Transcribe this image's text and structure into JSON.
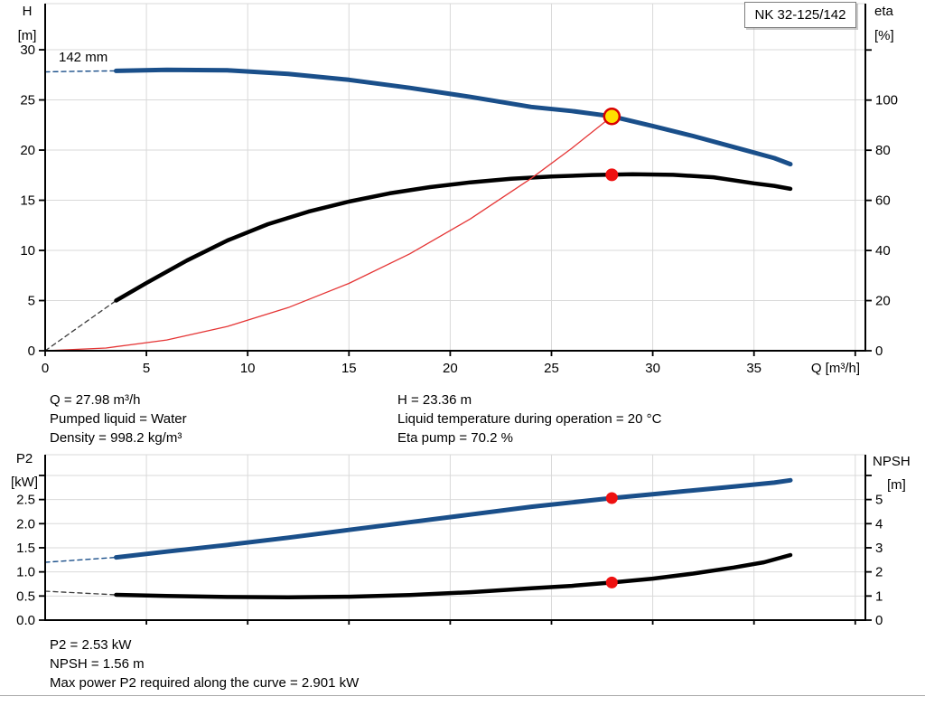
{
  "header": {
    "model": "NK 32-125/142"
  },
  "operating_point": {
    "left": [
      "Q = 27.98 m³/h",
      "Pumped liquid = Water",
      "Density = 998.2 kg/m³"
    ],
    "right": [
      "H = 23.36 m",
      "Liquid temperature during operation = 20 °C",
      "Eta pump = 70.2 %"
    ]
  },
  "results": [
    "P2 = 2.53 kW",
    "NPSH = 1.56 m",
    "Max power P2 required along the curve = 2.901 kW"
  ],
  "colors": {
    "curve_blue": "#1a4f8a",
    "curve_black": "#000000",
    "system_red": "#e53535",
    "dot_red": "#ee1111",
    "dot_yellow": "#ffe000",
    "grid": "#d9d9d9"
  },
  "chart_data": [
    {
      "id": "hq",
      "type": "line",
      "title": "",
      "impeller_label": "142 mm",
      "x_axis": {
        "label": "Q [m³/h]",
        "min": 0,
        "max": 40.5,
        "labeled_ticks": [
          0,
          5,
          10,
          15,
          20,
          25,
          30,
          35
        ],
        "tick_marks": [
          0,
          5,
          10,
          15,
          20,
          25,
          30,
          35,
          40
        ],
        "grid_ticks": [
          5,
          10,
          15,
          20,
          25,
          30,
          35,
          40
        ]
      },
      "y_left": {
        "label_lines": [
          "H",
          "[m]"
        ],
        "min": 0,
        "max": 34.6,
        "ticks": [
          0,
          5,
          10,
          15,
          20,
          25,
          30
        ],
        "unlabeled_ticks": [],
        "decimals": 0
      },
      "y_right": {
        "label_lines": [
          "eta",
          "[%]"
        ],
        "min": 0,
        "max": 138.5,
        "ticks": [
          0,
          20,
          40,
          60,
          80,
          100
        ],
        "unlabeled_ticks": [
          120
        ],
        "decimals": 0
      },
      "series": [
        {
          "name": "head-dashed",
          "axis": "left",
          "color": "#1a4f8a",
          "width": 1.4,
          "dash": "5 4",
          "points": [
            [
              0,
              27.8
            ],
            [
              1.8,
              27.86
            ],
            [
              3.5,
              27.9
            ]
          ]
        },
        {
          "name": "head",
          "axis": "left",
          "color": "#1a4f8a",
          "width": 5,
          "points": [
            [
              3.5,
              27.9
            ],
            [
              6,
              28.0
            ],
            [
              9,
              27.95
            ],
            [
              12,
              27.6
            ],
            [
              15,
              27.0
            ],
            [
              18,
              26.2
            ],
            [
              21,
              25.3
            ],
            [
              24,
              24.3
            ],
            [
              26,
              23.9
            ],
            [
              27.98,
              23.36
            ],
            [
              30,
              22.4
            ],
            [
              32,
              21.4
            ],
            [
              34,
              20.3
            ],
            [
              36,
              19.2
            ],
            [
              36.8,
              18.6
            ]
          ]
        },
        {
          "name": "eta-dashed",
          "axis": "right",
          "color": "#3c3c3c",
          "width": 1.3,
          "dash": "5 4",
          "points": [
            [
              0,
              0
            ],
            [
              3.5,
              20
            ]
          ]
        },
        {
          "name": "eta",
          "axis": "right",
          "color": "#000000",
          "width": 4.5,
          "points": [
            [
              3.5,
              20
            ],
            [
              5,
              27
            ],
            [
              7,
              36
            ],
            [
              9,
              44
            ],
            [
              11,
              50.5
            ],
            [
              13,
              55.5
            ],
            [
              15,
              59.5
            ],
            [
              17,
              62.8
            ],
            [
              19,
              65.3
            ],
            [
              21,
              67.2
            ],
            [
              23,
              68.6
            ],
            [
              25,
              69.5
            ],
            [
              27,
              70.1
            ],
            [
              29,
              70.4
            ],
            [
              31,
              70.2
            ],
            [
              33,
              69.2
            ],
            [
              35,
              66.8
            ],
            [
              36,
              65.8
            ],
            [
              36.8,
              64.6
            ]
          ]
        },
        {
          "name": "system-curve",
          "axis": "left",
          "color": "#e53535",
          "width": 1.3,
          "points": [
            [
              0,
              0
            ],
            [
              3,
              0.27
            ],
            [
              6,
              1.07
            ],
            [
              9,
              2.42
            ],
            [
              12,
              4.3
            ],
            [
              15,
              6.71
            ],
            [
              18,
              9.66
            ],
            [
              21,
              13.15
            ],
            [
              24,
              17.18
            ],
            [
              26,
              20.17
            ],
            [
              27.98,
              23.36
            ]
          ]
        }
      ],
      "markers": [
        {
          "name": "duty-point",
          "axis": "left",
          "x": 27.98,
          "y": 23.36,
          "r": 8.5,
          "fill": "#ffe000",
          "stroke": "#d90000",
          "stroke_width": 2.5
        },
        {
          "name": "eta-point",
          "axis": "right",
          "x": 27.98,
          "y": 70.2,
          "r": 7,
          "fill": "#ee1111"
        }
      ]
    },
    {
      "id": "p2npsh",
      "type": "line",
      "title": "",
      "impeller_label": "",
      "x_axis": {
        "label": "",
        "min": 0,
        "max": 40.5,
        "labeled_ticks": [],
        "tick_marks": [
          5,
          10,
          15,
          20,
          25,
          30,
          35,
          40
        ],
        "grid_ticks": [
          5,
          10,
          15,
          20,
          25,
          30,
          35,
          40
        ]
      },
      "y_left": {
        "label_lines": [
          "P2",
          "[kW]"
        ],
        "min": 0,
        "max": 3.43,
        "ticks": [
          0,
          0.5,
          1,
          1.5,
          2,
          2.5
        ],
        "unlabeled_ticks": [
          3
        ],
        "decimals": 1
      },
      "y_right": {
        "label_lines": [
          "NPSH",
          "[m]"
        ],
        "min": 0,
        "max": 6.86,
        "ticks": [
          0,
          1,
          2,
          3,
          4,
          5
        ],
        "unlabeled_ticks": [
          6
        ],
        "decimals": 0
      },
      "series": [
        {
          "name": "p2-dashed",
          "axis": "left",
          "color": "#1a4f8a",
          "width": 1.4,
          "dash": "5 4",
          "points": [
            [
              0,
              1.2
            ],
            [
              3.5,
              1.3
            ]
          ]
        },
        {
          "name": "p2",
          "axis": "left",
          "color": "#1a4f8a",
          "width": 5,
          "points": [
            [
              3.5,
              1.3
            ],
            [
              6,
              1.42
            ],
            [
              9,
              1.56
            ],
            [
              12,
              1.71
            ],
            [
              15,
              1.87
            ],
            [
              18,
              2.03
            ],
            [
              21,
              2.19
            ],
            [
              24,
              2.35
            ],
            [
              26,
              2.44
            ],
            [
              27.98,
              2.53
            ],
            [
              30,
              2.61
            ],
            [
              32,
              2.69
            ],
            [
              34,
              2.77
            ],
            [
              36,
              2.85
            ],
            [
              36.8,
              2.9
            ]
          ]
        },
        {
          "name": "npsh-dashed",
          "axis": "right",
          "color": "#3c3c3c",
          "width": 1.3,
          "dash": "5 4",
          "points": [
            [
              0,
              1.2
            ],
            [
              3.5,
              1.05
            ]
          ]
        },
        {
          "name": "npsh",
          "axis": "right",
          "color": "#000000",
          "width": 4.5,
          "points": [
            [
              3.5,
              1.05
            ],
            [
              6,
              1.0
            ],
            [
              9,
              0.96
            ],
            [
              12,
              0.95
            ],
            [
              15,
              0.97
            ],
            [
              18,
              1.04
            ],
            [
              21,
              1.16
            ],
            [
              24,
              1.32
            ],
            [
              26,
              1.42
            ],
            [
              27.98,
              1.56
            ],
            [
              30,
              1.72
            ],
            [
              32,
              1.93
            ],
            [
              34,
              2.18
            ],
            [
              35.5,
              2.4
            ],
            [
              36.8,
              2.7
            ]
          ]
        }
      ],
      "markers": [
        {
          "name": "p2-point",
          "axis": "left",
          "x": 27.98,
          "y": 2.53,
          "r": 6.5,
          "fill": "#ee1111"
        },
        {
          "name": "npsh-point",
          "axis": "right",
          "x": 27.98,
          "y": 1.56,
          "r": 6.5,
          "fill": "#ee1111"
        }
      ]
    }
  ]
}
